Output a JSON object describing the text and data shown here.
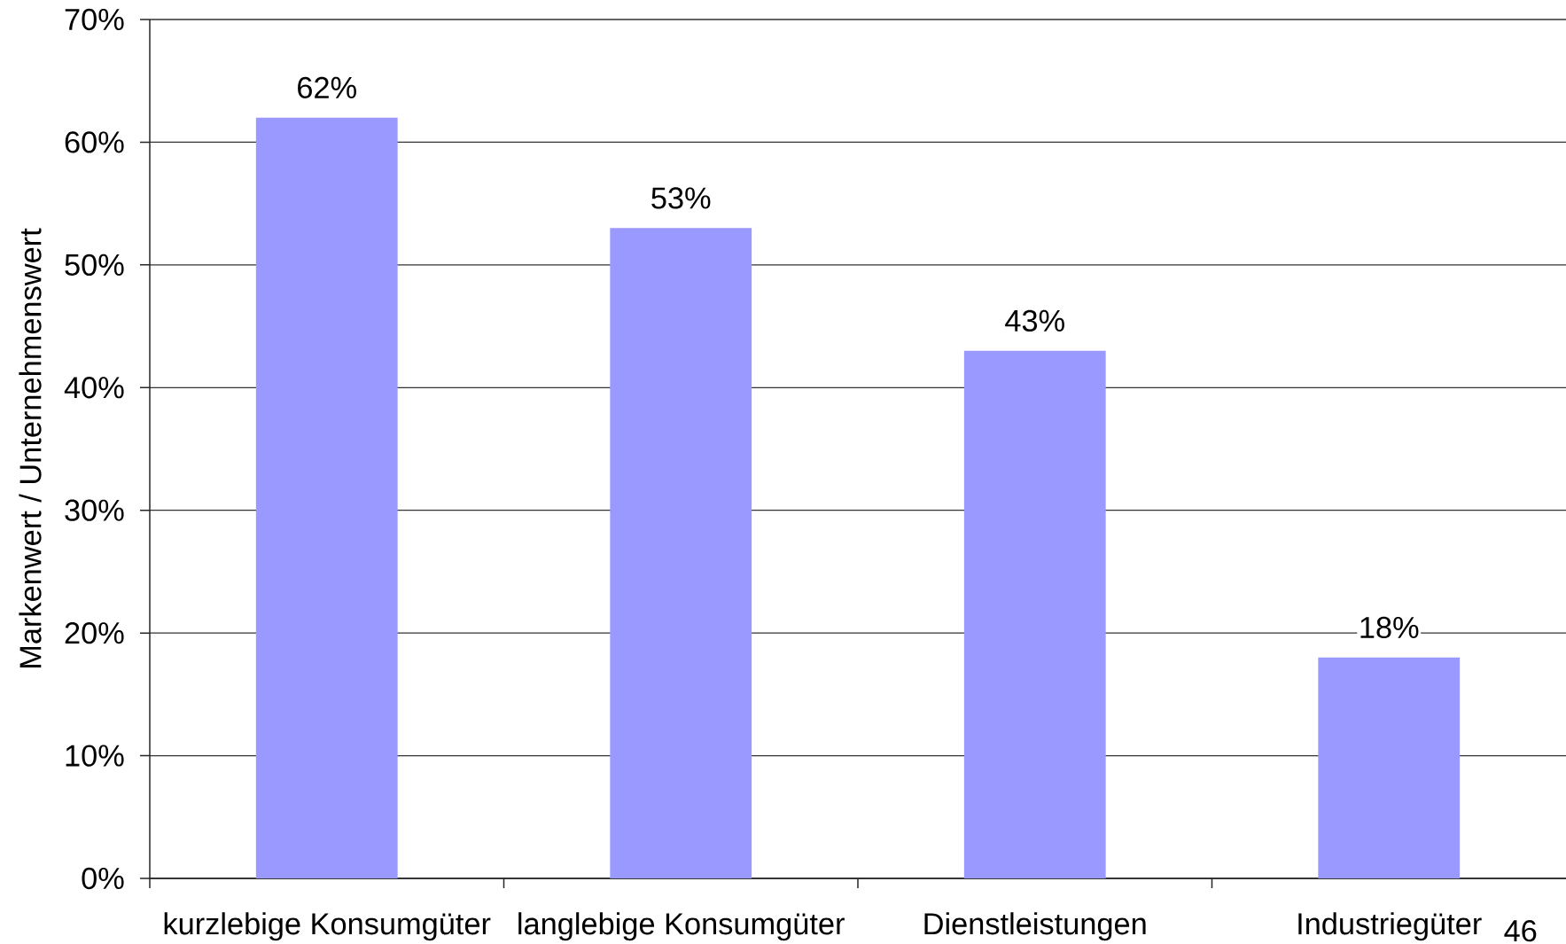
{
  "chart_data": {
    "type": "bar",
    "ylabel": "Markenwert / Unternehmenswert",
    "categories": [
      "kurzlebige Konsumgüter",
      "langlebige Konsumgüter",
      "Dienstleistungen",
      "Industriegüter"
    ],
    "values": [
      62,
      53,
      43,
      18
    ],
    "value_labels": [
      "62%",
      "53%",
      "43%",
      "18%"
    ],
    "color": "#9999ff",
    "ylim": [
      0,
      70
    ],
    "yticks": [
      {
        "value": 0,
        "label": "0%"
      },
      {
        "value": 10,
        "label": "10%"
      },
      {
        "value": 20,
        "label": "20%"
      },
      {
        "value": 30,
        "label": "30%"
      },
      {
        "value": 40,
        "label": "40%"
      },
      {
        "value": 50,
        "label": "50%"
      },
      {
        "value": 60,
        "label": "60%"
      },
      {
        "value": 70,
        "label": "70%"
      }
    ],
    "grid": "y",
    "annotations": [
      "46"
    ]
  }
}
